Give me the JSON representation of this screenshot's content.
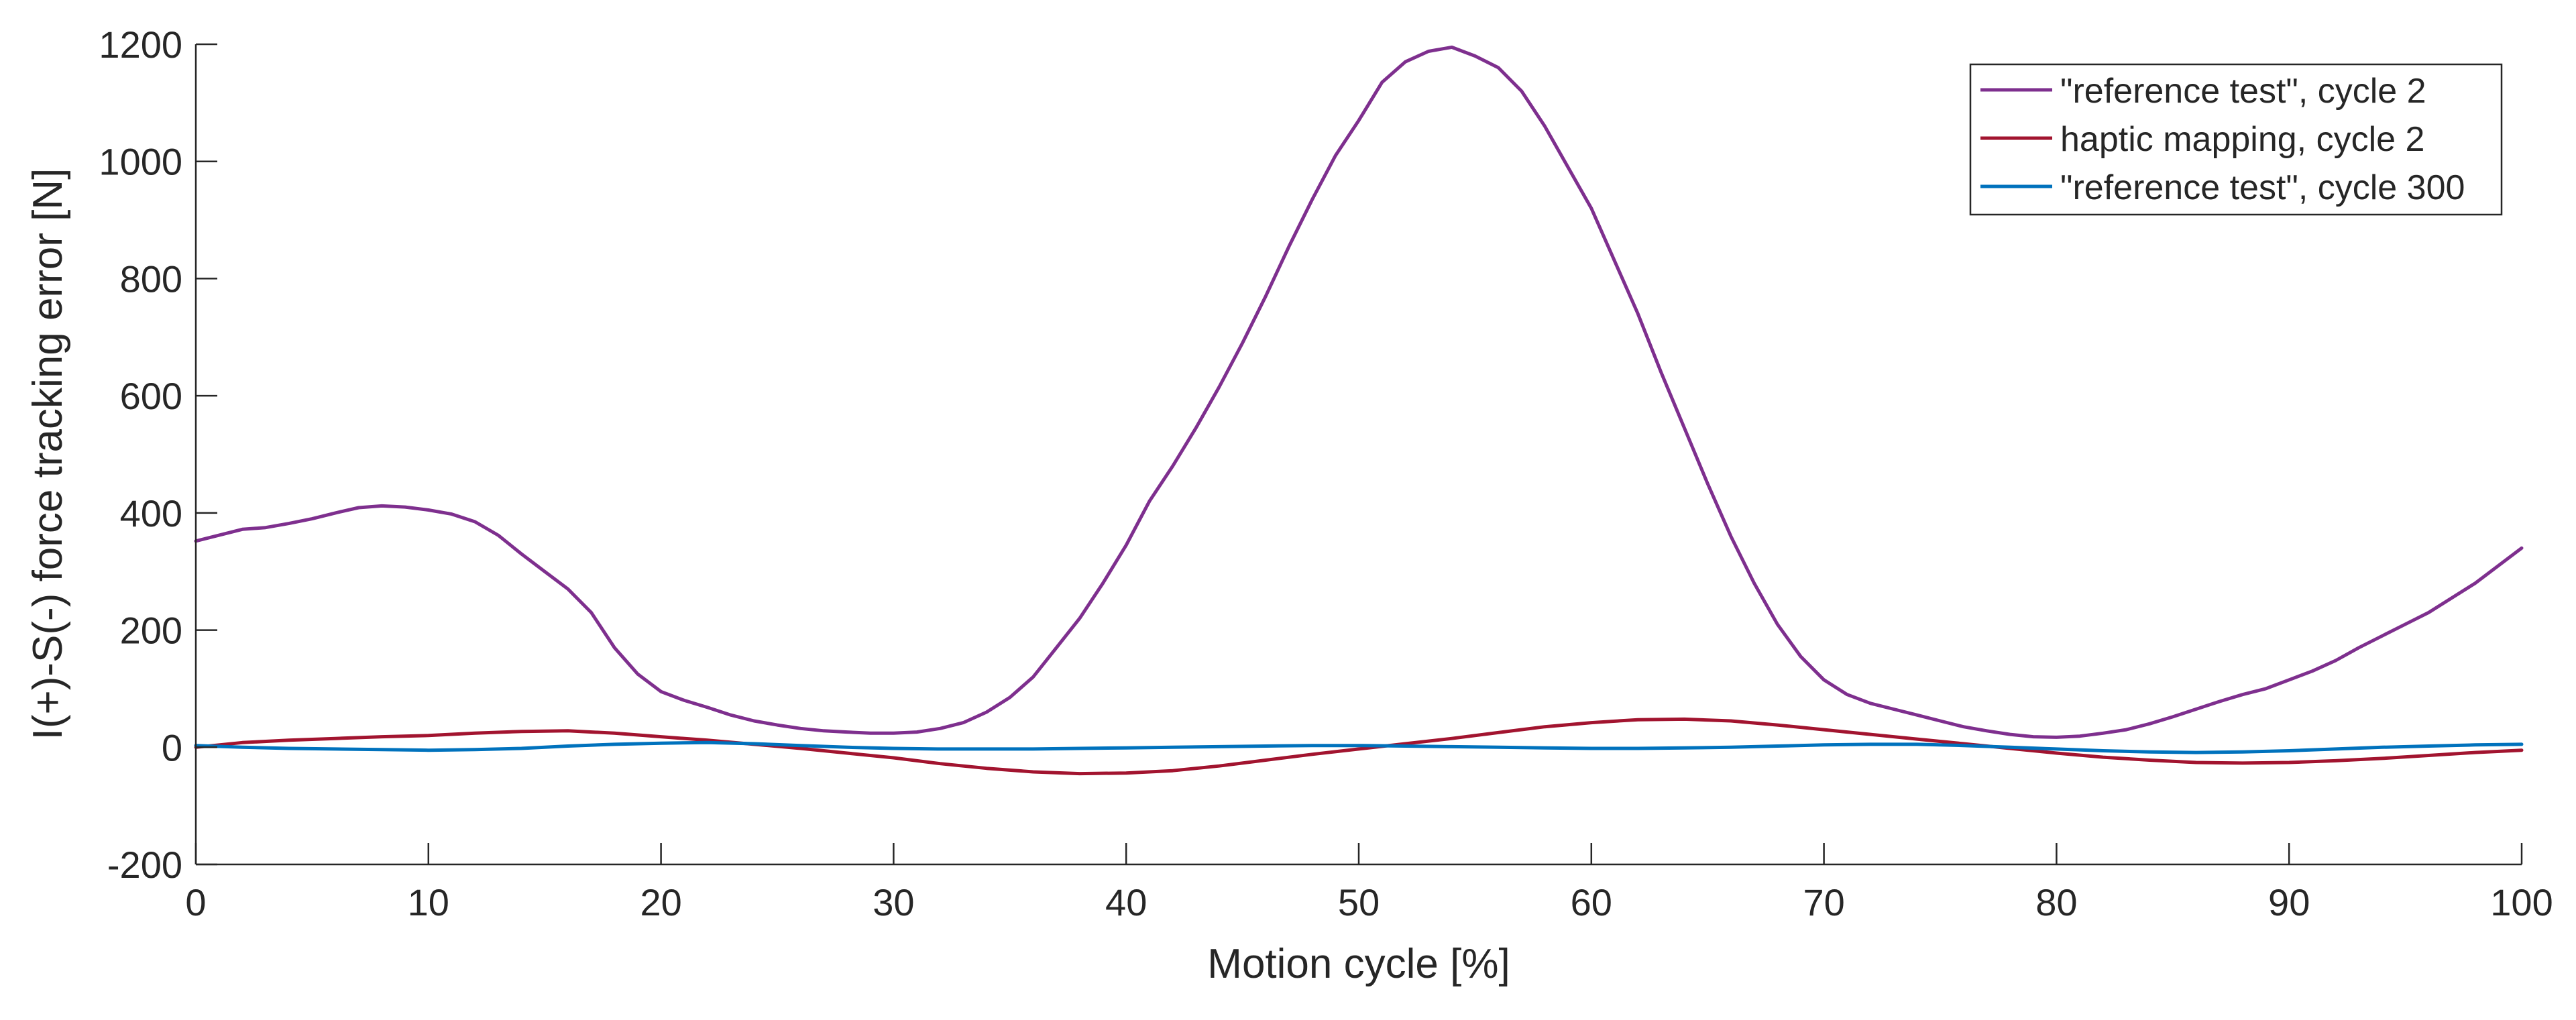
{
  "chart_data": {
    "type": "line",
    "title": "",
    "xlabel": "Motion cycle [%]",
    "ylabel": "I(+)-S(-) force tracking error [N]",
    "xlim": [
      0,
      100
    ],
    "ylim": [
      -200,
      1200
    ],
    "xticks": [
      0,
      10,
      20,
      30,
      40,
      50,
      60,
      70,
      80,
      90,
      100
    ],
    "yticks": [
      -200,
      0,
      200,
      400,
      600,
      800,
      1000,
      1200
    ],
    "xtick_labels": [
      "0",
      "10",
      "20",
      "30",
      "40",
      "50",
      "60",
      "70",
      "80",
      "90",
      "100"
    ],
    "ytick_labels": [
      "-200",
      "0",
      "200",
      "400",
      "600",
      "800",
      "1000",
      "1200"
    ],
    "grid": false,
    "legend_position": "top-right",
    "series": [
      {
        "name": "\"reference test\", cycle 2",
        "color": "#7e2f8e",
        "points": [
          [
            0,
            352
          ],
          [
            1,
            362
          ],
          [
            2,
            372
          ],
          [
            3,
            375
          ],
          [
            4,
            382
          ],
          [
            5,
            390
          ],
          [
            6,
            400
          ],
          [
            7,
            409
          ],
          [
            8,
            412
          ],
          [
            9,
            410
          ],
          [
            10,
            405
          ],
          [
            11,
            398
          ],
          [
            12,
            385
          ],
          [
            13,
            362
          ],
          [
            14,
            330
          ],
          [
            15,
            300
          ],
          [
            16,
            270
          ],
          [
            17,
            230
          ],
          [
            18,
            170
          ],
          [
            19,
            125
          ],
          [
            20,
            95
          ],
          [
            21,
            80
          ],
          [
            22,
            68
          ],
          [
            23,
            55
          ],
          [
            24,
            45
          ],
          [
            25,
            38
          ],
          [
            26,
            32
          ],
          [
            27,
            28
          ],
          [
            28,
            26
          ],
          [
            29,
            24
          ],
          [
            30,
            24
          ],
          [
            31,
            26
          ],
          [
            32,
            32
          ],
          [
            33,
            42
          ],
          [
            34,
            60
          ],
          [
            35,
            85
          ],
          [
            36,
            120
          ],
          [
            37,
            170
          ],
          [
            38,
            220
          ],
          [
            39,
            280
          ],
          [
            40,
            345
          ],
          [
            41,
            420
          ],
          [
            42,
            480
          ],
          [
            43,
            545
          ],
          [
            44,
            615
          ],
          [
            45,
            690
          ],
          [
            46,
            770
          ],
          [
            47,
            855
          ],
          [
            48,
            935
          ],
          [
            49,
            1010
          ],
          [
            50,
            1070
          ],
          [
            51,
            1135
          ],
          [
            52,
            1170
          ],
          [
            53,
            1188
          ],
          [
            54,
            1195
          ],
          [
            55,
            1180
          ],
          [
            56,
            1160
          ],
          [
            57,
            1120
          ],
          [
            58,
            1060
          ],
          [
            59,
            990
          ],
          [
            60,
            920
          ],
          [
            61,
            830
          ],
          [
            62,
            740
          ],
          [
            63,
            640
          ],
          [
            64,
            545
          ],
          [
            65,
            450
          ],
          [
            66,
            360
          ],
          [
            67,
            280
          ],
          [
            68,
            210
          ],
          [
            69,
            155
          ],
          [
            70,
            115
          ],
          [
            71,
            90
          ],
          [
            72,
            75
          ],
          [
            73,
            65
          ],
          [
            74,
            55
          ],
          [
            75,
            45
          ],
          [
            76,
            35
          ],
          [
            77,
            28
          ],
          [
            78,
            22
          ],
          [
            79,
            18
          ],
          [
            80,
            17
          ],
          [
            81,
            19
          ],
          [
            82,
            24
          ],
          [
            83,
            30
          ],
          [
            84,
            40
          ],
          [
            85,
            52
          ],
          [
            86,
            65
          ],
          [
            87,
            78
          ],
          [
            88,
            90
          ],
          [
            89,
            100
          ],
          [
            90,
            115
          ],
          [
            91,
            130
          ],
          [
            92,
            148
          ],
          [
            93,
            170
          ],
          [
            94,
            190
          ],
          [
            95,
            210
          ],
          [
            96,
            230
          ],
          [
            97,
            255
          ],
          [
            98,
            280
          ],
          [
            99,
            310
          ],
          [
            100,
            340
          ]
        ]
      },
      {
        "name": "haptic mapping, cycle 2",
        "color": "#a2142f",
        "points": [
          [
            0,
            0
          ],
          [
            2,
            8
          ],
          [
            4,
            12
          ],
          [
            6,
            15
          ],
          [
            8,
            18
          ],
          [
            10,
            20
          ],
          [
            12,
            24
          ],
          [
            14,
            27
          ],
          [
            16,
            28
          ],
          [
            18,
            24
          ],
          [
            20,
            18
          ],
          [
            22,
            12
          ],
          [
            24,
            5
          ],
          [
            26,
            -2
          ],
          [
            28,
            -10
          ],
          [
            30,
            -18
          ],
          [
            32,
            -28
          ],
          [
            34,
            -36
          ],
          [
            36,
            -42
          ],
          [
            38,
            -45
          ],
          [
            40,
            -44
          ],
          [
            42,
            -40
          ],
          [
            44,
            -32
          ],
          [
            46,
            -22
          ],
          [
            48,
            -12
          ],
          [
            50,
            -3
          ],
          [
            52,
            6
          ],
          [
            54,
            15
          ],
          [
            56,
            25
          ],
          [
            58,
            35
          ],
          [
            60,
            42
          ],
          [
            62,
            47
          ],
          [
            64,
            48
          ],
          [
            66,
            45
          ],
          [
            68,
            38
          ],
          [
            70,
            30
          ],
          [
            72,
            22
          ],
          [
            74,
            14
          ],
          [
            76,
            6
          ],
          [
            78,
            -2
          ],
          [
            80,
            -10
          ],
          [
            82,
            -17
          ],
          [
            84,
            -22
          ],
          [
            86,
            -26
          ],
          [
            88,
            -27
          ],
          [
            90,
            -26
          ],
          [
            92,
            -23
          ],
          [
            94,
            -19
          ],
          [
            96,
            -14
          ],
          [
            98,
            -9
          ],
          [
            100,
            -5
          ]
        ]
      },
      {
        "name": "\"reference test\", cycle 300",
        "color": "#0072bd",
        "points": [
          [
            0,
            3
          ],
          [
            2,
            0
          ],
          [
            4,
            -2
          ],
          [
            6,
            -3
          ],
          [
            8,
            -4
          ],
          [
            10,
            -5
          ],
          [
            12,
            -4
          ],
          [
            14,
            -2
          ],
          [
            16,
            2
          ],
          [
            18,
            5
          ],
          [
            20,
            7
          ],
          [
            22,
            8
          ],
          [
            24,
            6
          ],
          [
            26,
            3
          ],
          [
            28,
            0
          ],
          [
            30,
            -2
          ],
          [
            32,
            -3
          ],
          [
            34,
            -3
          ],
          [
            36,
            -3
          ],
          [
            38,
            -2
          ],
          [
            40,
            -1
          ],
          [
            42,
            0
          ],
          [
            44,
            1
          ],
          [
            46,
            2
          ],
          [
            48,
            3
          ],
          [
            50,
            3
          ],
          [
            52,
            2
          ],
          [
            54,
            1
          ],
          [
            56,
            0
          ],
          [
            58,
            -1
          ],
          [
            60,
            -2
          ],
          [
            62,
            -2
          ],
          [
            64,
            -1
          ],
          [
            66,
            0
          ],
          [
            68,
            2
          ],
          [
            70,
            4
          ],
          [
            72,
            5
          ],
          [
            74,
            5
          ],
          [
            76,
            3
          ],
          [
            78,
            0
          ],
          [
            80,
            -3
          ],
          [
            82,
            -6
          ],
          [
            84,
            -8
          ],
          [
            86,
            -9
          ],
          [
            88,
            -8
          ],
          [
            90,
            -6
          ],
          [
            92,
            -3
          ],
          [
            94,
            0
          ],
          [
            96,
            2
          ],
          [
            98,
            4
          ],
          [
            100,
            5
          ]
        ]
      }
    ]
  }
}
